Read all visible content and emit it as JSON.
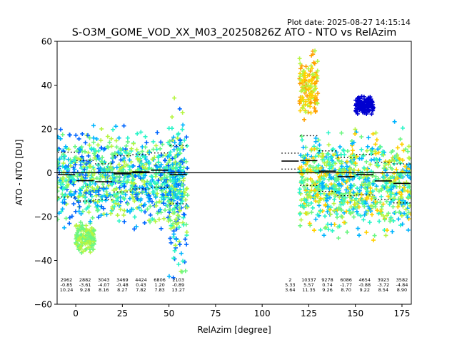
{
  "plot_date": "Plot date: 2025-08-27 14:15:14",
  "chart_data": {
    "type": "scatter",
    "title": "S-O3M_GOME_VOD_XX_M03_20250826Z ATO - NTO vs RelAzim",
    "xlabel": "RelAzim [degree]",
    "ylabel": "ATO - NTO [DU]",
    "xlim": [
      -10,
      180
    ],
    "ylim": [
      -60,
      60
    ],
    "xticks": [
      0,
      25,
      50,
      75,
      100,
      125,
      150,
      175
    ],
    "yticks": [
      -60,
      -40,
      -20,
      0,
      20,
      40,
      60
    ],
    "grid": false,
    "zero_line": 0,
    "colormap": [
      "#0000d0",
      "#0066ff",
      "#00b4ff",
      "#2af5c8",
      "#6cf782",
      "#b6f542",
      "#ffd000",
      "#ffa000"
    ],
    "bins": [
      {
        "x0": -10,
        "x1": 0,
        "count": "2962",
        "mean": "-0.85",
        "std": "10.24",
        "mean_value": -0.85,
        "std_value": 10.24
      },
      {
        "x0": 0,
        "x1": 10,
        "count": "2882",
        "mean": "-3.61",
        "std": "9.28",
        "mean_value": -3.61,
        "std_value": 9.28
      },
      {
        "x0": 10,
        "x1": 20,
        "count": "3043",
        "mean": "-4.07",
        "std": "8.16",
        "mean_value": -4.07,
        "std_value": 8.16
      },
      {
        "x0": 20,
        "x1": 30,
        "count": "3469",
        "mean": "-0.48",
        "std": "8.27",
        "mean_value": -0.48,
        "std_value": 8.27
      },
      {
        "x0": 30,
        "x1": 40,
        "count": "4424",
        "mean": "0.43",
        "std": "7.82",
        "mean_value": 0.43,
        "std_value": 7.82
      },
      {
        "x0": 40,
        "x1": 50,
        "count": "6806",
        "mean": "1.20",
        "std": "7.83",
        "mean_value": 1.2,
        "std_value": 7.83
      },
      {
        "x0": 50,
        "x1": 60,
        "count": "2103",
        "mean": "-0.89",
        "std": "13.27",
        "mean_value": -0.89,
        "std_value": 13.27
      },
      {
        "x0": 110,
        "x1": 120,
        "count": "2",
        "mean": "5.33",
        "std": "3.64",
        "mean_value": 5.33,
        "std_value": 3.64
      },
      {
        "x0": 120,
        "x1": 130,
        "count": "10337",
        "mean": "5.57",
        "std": "11.35",
        "mean_value": 5.57,
        "std_value": 11.35
      },
      {
        "x0": 130,
        "x1": 140,
        "count": "9278",
        "mean": "0.74",
        "std": "9.26",
        "mean_value": 0.74,
        "std_value": 9.26
      },
      {
        "x0": 140,
        "x1": 150,
        "count": "6086",
        "mean": "-1.77",
        "std": "8.70",
        "mean_value": -1.77,
        "std_value": 8.7
      },
      {
        "x0": 150,
        "x1": 160,
        "count": "4654",
        "mean": "-0.88",
        "std": "9.22",
        "mean_value": -0.88,
        "std_value": 9.22
      },
      {
        "x0": 160,
        "x1": 170,
        "count": "3923",
        "mean": "-3.72",
        "std": "8.54",
        "mean_value": -3.72,
        "std_value": 8.54
      },
      {
        "x0": 170,
        "x1": 180,
        "count": "3582",
        "mean": "-4.84",
        "std": "8.90",
        "mean_value": -4.84,
        "std_value": 8.9
      }
    ],
    "point_clusters": [
      {
        "x_range": [
          -10,
          58
        ],
        "y_range": [
          -30,
          25
        ],
        "colors": [
          3,
          4,
          2,
          1,
          5
        ]
      },
      {
        "x_range": [
          0,
          10
        ],
        "y_range": [
          -40,
          -20
        ],
        "colors": [
          4,
          5
        ]
      },
      {
        "x_range": [
          50,
          60
        ],
        "y_range": [
          -60,
          38
        ],
        "colors": [
          1,
          2,
          3,
          4,
          5
        ]
      },
      {
        "x_range": [
          120,
          180
        ],
        "y_range": [
          -35,
          25
        ],
        "colors": [
          3,
          4,
          2,
          6,
          5
        ]
      },
      {
        "x_range": [
          120,
          130
        ],
        "y_range": [
          20,
          58
        ],
        "colors": [
          5,
          6,
          7
        ]
      },
      {
        "x_range": [
          150,
          160
        ],
        "y_range": [
          25,
          37
        ],
        "colors": [
          0
        ]
      }
    ]
  }
}
